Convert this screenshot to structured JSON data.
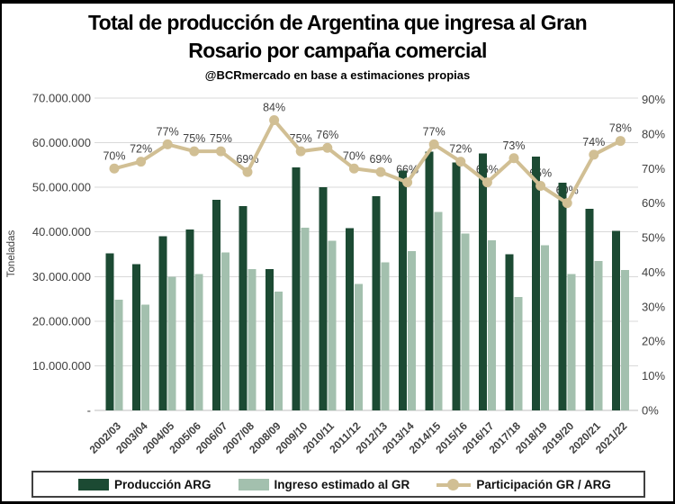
{
  "title": {
    "line1": "Total de producción de Argentina que ingresa al Gran",
    "line2": "Rosario por campaña comercial"
  },
  "subtitle": "@BCRmercado  en base a estimaciones propias",
  "chart_data": {
    "type": "combo: grouped vertical bars (left axis, toneladas) + line with markers (right axis, %)",
    "categories": [
      "2002/03",
      "2003/04",
      "2004/05",
      "2005/06",
      "2006/07",
      "2007/08",
      "2008/09",
      "2009/10",
      "2010/11",
      "2011/12",
      "2012/13",
      "2013/14",
      "2014/15",
      "2015/16",
      "2016/17",
      "2017/18",
      "2018/19",
      "2019/20",
      "2020/21",
      "2021/22"
    ],
    "series": [
      {
        "name": "Producción ARG",
        "type": "bar",
        "axis": "left",
        "unit": "millones de toneladas",
        "color": "#1c4a33",
        "values": [
          35.2,
          32.8,
          39,
          40.5,
          47.2,
          45.8,
          31.7,
          54.5,
          50,
          40.8,
          48,
          53.8,
          58,
          55.6,
          57.6,
          35,
          56.9,
          51,
          45.2,
          40.2
        ]
      },
      {
        "name": "Ingreso estimado al GR",
        "type": "bar",
        "axis": "left",
        "unit": "millones de toneladas",
        "color": "#a3c0ae",
        "values": [
          24.8,
          23.7,
          30,
          30.6,
          35.4,
          31.7,
          26.6,
          41,
          38,
          28.3,
          33.2,
          35.7,
          44.5,
          39.6,
          38.1,
          25.4,
          37,
          30.6,
          33.5,
          31.5
        ]
      },
      {
        "name": "Participación GR / ARG",
        "type": "line",
        "axis": "right",
        "unit": "%",
        "color": "#d1bf94",
        "values": [
          70,
          72,
          77,
          75,
          75,
          69,
          84,
          75,
          76,
          70,
          69,
          66,
          77,
          72,
          66,
          73,
          65,
          60,
          74,
          78
        ],
        "point_labels": [
          "70%",
          "72%",
          "77%",
          "75%",
          "75%",
          "69%",
          "84%",
          "75%",
          "76%",
          "70%",
          "69%",
          "66%",
          "77%",
          "72%",
          "66%",
          "73%",
          "65%",
          "60%",
          "74%",
          "78%"
        ]
      }
    ],
    "left_axis": {
      "title": "Toneladas",
      "min": 0,
      "max": 70,
      "tick_labels": [
        "70.000.000",
        "60.000.000",
        "50.000.000",
        "40.000.000",
        "30.000.000",
        "20.000.000",
        "10.000.000",
        "-"
      ]
    },
    "right_axis": {
      "min": 0,
      "max": 90,
      "tick_labels": [
        "90%",
        "80%",
        "70%",
        "60%",
        "50%",
        "40%",
        "30%",
        "20%",
        "10%",
        "0%"
      ]
    },
    "grid": true,
    "legend_position": "bottom"
  },
  "colors": {
    "grid_line": "#d9d9d9",
    "axis_line": "#bfbfbf",
    "tick_text": "#404040",
    "point_label_text": "#3f3f3f"
  }
}
